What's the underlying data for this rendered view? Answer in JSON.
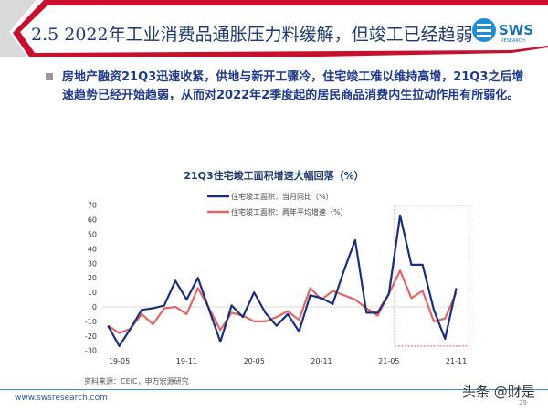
{
  "header": {
    "title": "2.5 2022年工业消费品通胀压力料缓解，但竣工已经趋弱",
    "logo_text": "SWS",
    "logo_sub": "RESEARCH"
  },
  "body": {
    "bullet": "房地产融资21Q3迅速收紧，供地与新开工骤冷，住宅竣工难以维持高增，21Q3之后增速趋势已经开始趋弱，从而对2022年2季度起的居民商品消费内生拉动作用有所弱化。"
  },
  "chart_data": {
    "type": "line",
    "title": "21Q3住宅竣工面积增速大幅回落（%）",
    "x": [
      "19-04",
      "19-05",
      "19-06",
      "19-07",
      "19-08",
      "19-09",
      "19-10",
      "19-11",
      "19-12",
      "20-01",
      "20-02",
      "20-03",
      "20-04",
      "20-05",
      "20-06",
      "20-07",
      "20-08",
      "20-09",
      "20-10",
      "20-11",
      "20-12",
      "21-01",
      "21-02",
      "21-03",
      "21-04",
      "21-05",
      "21-06",
      "21-07",
      "21-08",
      "21-09",
      "21-10",
      "21-11"
    ],
    "x_tick_labels": [
      "19-05",
      "19-11",
      "20-05",
      "20-11",
      "21-05",
      "21-11"
    ],
    "y_ticks": [
      70,
      60,
      50,
      40,
      30,
      20,
      10,
      0,
      -10,
      -20,
      -30
    ],
    "ylim": [
      -30,
      70
    ],
    "legend_placement": "top-center",
    "series": [
      {
        "name": "住宅竣工面积：当月同比（%）",
        "color": "#1a2f7a",
        "values": [
          -13,
          -27,
          -15,
          -2,
          -1,
          1,
          18,
          5,
          20,
          -2,
          -24,
          1,
          -7,
          10,
          -4,
          -13,
          -5,
          -17,
          8,
          6,
          2,
          25,
          46,
          -4,
          -4,
          9,
          63,
          29,
          29,
          -2,
          -22,
          13
        ]
      },
      {
        "name": "住宅竣工面积：两年平均增速（%）",
        "color": "#e06666",
        "values": [
          -13,
          -18,
          -15,
          -5,
          -12,
          -1,
          0,
          -5,
          13,
          -1,
          -16,
          -4,
          -6,
          -10,
          -10,
          -7,
          -3,
          -9,
          13,
          5,
          11,
          8,
          5,
          -1,
          -6,
          9,
          25,
          6,
          11,
          -10,
          -8,
          10
        ]
      }
    ],
    "highlight_range": [
      "21-06",
      "21-11"
    ],
    "highlight_color": "#c0504d"
  },
  "footer": {
    "source": "资料来源：CEIC，申万宏源研究",
    "url": "www.swsresearch.com",
    "page": "29",
    "watermark": "头条 @财是"
  }
}
